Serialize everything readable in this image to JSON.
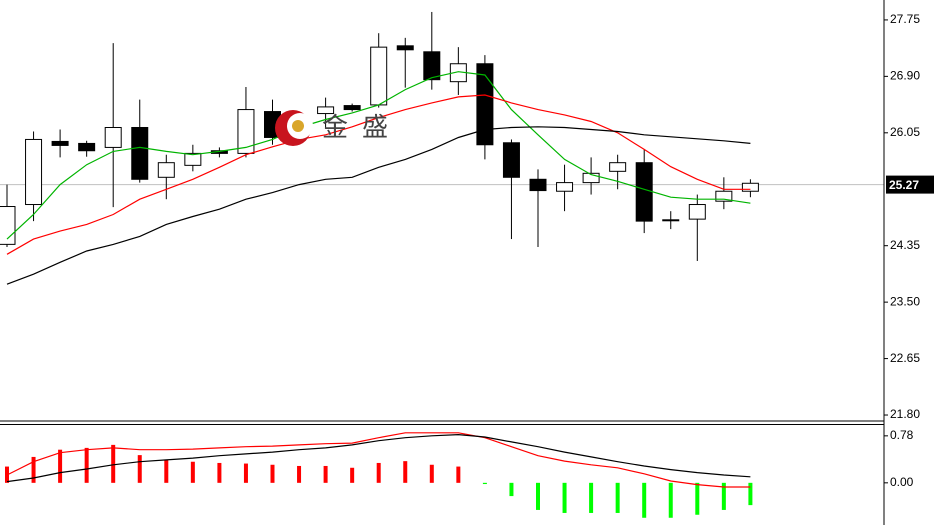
{
  "chart_data": [
    {
      "type": "candlestick",
      "watermark": "金盛",
      "open": [
        24.37,
        24.97,
        25.92,
        25.89,
        25.83,
        26.13,
        25.38,
        25.56,
        25.78,
        25.74,
        26.37,
        26.18,
        26.34,
        26.46,
        26.47,
        27.36,
        27.27,
        26.82,
        27.09,
        25.9,
        25.35,
        25.17,
        25.3,
        25.47,
        25.6,
        24.74,
        24.75,
        25.02,
        25.17
      ],
      "high": [
        25.27,
        26.07,
        26.1,
        25.93,
        27.4,
        26.55,
        25.72,
        25.87,
        25.83,
        26.74,
        26.55,
        26.37,
        26.58,
        26.49,
        27.55,
        27.48,
        27.87,
        27.34,
        27.22,
        25.95,
        25.5,
        25.57,
        25.68,
        25.72,
        25.8,
        24.87,
        25.12,
        25.38,
        25.35
      ],
      "low": [
        24.33,
        24.72,
        25.68,
        25.69,
        24.93,
        25.3,
        25.05,
        25.47,
        25.68,
        25.68,
        25.87,
        26.1,
        26.13,
        26.37,
        26.43,
        26.73,
        26.7,
        26.62,
        25.65,
        24.45,
        24.33,
        24.87,
        25.12,
        25.2,
        24.54,
        24.6,
        24.12,
        24.9,
        25.08
      ],
      "close": [
        24.94,
        25.95,
        25.86,
        25.78,
        26.13,
        25.35,
        25.6,
        25.74,
        25.74,
        26.4,
        25.98,
        26.3,
        26.44,
        26.4,
        27.34,
        27.3,
        26.85,
        27.09,
        25.87,
        25.38,
        25.18,
        25.3,
        25.44,
        25.6,
        24.72,
        24.73,
        24.97,
        25.17,
        25.29
      ],
      "up_color": "#ffffff",
      "down_color": "#000000",
      "edge_color": "#000000",
      "series": [
        {
          "color": "#00b400",
          "values": [
            24.45,
            24.82,
            25.27,
            25.57,
            25.77,
            25.83,
            25.77,
            25.72,
            25.77,
            25.83,
            25.95,
            26.13,
            26.25,
            26.35,
            26.47,
            26.7,
            26.88,
            26.97,
            26.92,
            26.4,
            26.02,
            25.65,
            25.42,
            25.32,
            25.2,
            25.08,
            25.05,
            25.05,
            24.99
          ]
        },
        {
          "color": "#ff0000",
          "values": [
            24.22,
            24.45,
            24.57,
            24.67,
            24.82,
            25.05,
            25.2,
            25.35,
            25.53,
            25.72,
            25.84,
            25.95,
            26.02,
            26.14,
            26.28,
            26.4,
            26.5,
            26.59,
            26.62,
            26.5,
            26.4,
            26.32,
            26.22,
            26.05,
            25.8,
            25.54,
            25.35,
            25.2,
            25.2
          ]
        },
        {
          "color": "#000000",
          "values": [
            23.77,
            23.92,
            24.1,
            24.27,
            24.37,
            24.49,
            24.67,
            24.79,
            24.9,
            25.05,
            25.15,
            25.27,
            25.35,
            25.38,
            25.53,
            25.65,
            25.8,
            25.98,
            26.1,
            26.13,
            26.14,
            26.13,
            26.1,
            26.07,
            26.02,
            25.99,
            25.96,
            25.93,
            25.89
          ]
        }
      ],
      "last_price": 25.27,
      "ylim": [
        21.71,
        28.05
      ],
      "yticks": [
        27.75,
        {
          "value": 26.9,
          "label": "26.90"
        },
        26.05,
        {
          "value": 24.35,
          "label": "24.35"
        },
        {
          "value": 23.5,
          "label": "23.50"
        },
        22.65,
        {
          "value": 21.8,
          "label": "21.80"
        }
      ]
    },
    {
      "type": "macd",
      "values": [
        0.27,
        0.43,
        0.55,
        0.58,
        0.63,
        0.46,
        0.38,
        0.35,
        0.33,
        0.32,
        0.3,
        0.28,
        0.28,
        0.25,
        0.33,
        0.36,
        0.3,
        0.27,
        -0.02,
        -0.22,
        -0.45,
        -0.5,
        -0.5,
        -0.5,
        -0.58,
        -0.58,
        -0.53,
        -0.45,
        -0.37
      ],
      "positive_color": "#ff0000",
      "negative_color": "#00ff00",
      "series": [
        {
          "color": "#ff0000",
          "values": [
            0.13,
            0.35,
            0.5,
            0.55,
            0.58,
            0.55,
            0.55,
            0.56,
            0.58,
            0.6,
            0.61,
            0.63,
            0.65,
            0.66,
            0.75,
            0.83,
            0.83,
            0.83,
            0.75,
            0.6,
            0.45,
            0.36,
            0.3,
            0.25,
            0.15,
            0.03,
            -0.03,
            -0.07,
            -0.07
          ]
        },
        {
          "color": "#000000",
          "values": [
            0.02,
            0.08,
            0.17,
            0.23,
            0.3,
            0.35,
            0.38,
            0.41,
            0.45,
            0.48,
            0.51,
            0.55,
            0.58,
            0.63,
            0.7,
            0.75,
            0.78,
            0.8,
            0.76,
            0.68,
            0.6,
            0.51,
            0.43,
            0.35,
            0.28,
            0.22,
            0.17,
            0.13,
            0.1
          ]
        }
      ],
      "ylim": [
        -0.7,
        0.96
      ],
      "yticks": [
        0.78,
        {
          "value": 0,
          "label": "0.00"
        }
      ]
    }
  ]
}
